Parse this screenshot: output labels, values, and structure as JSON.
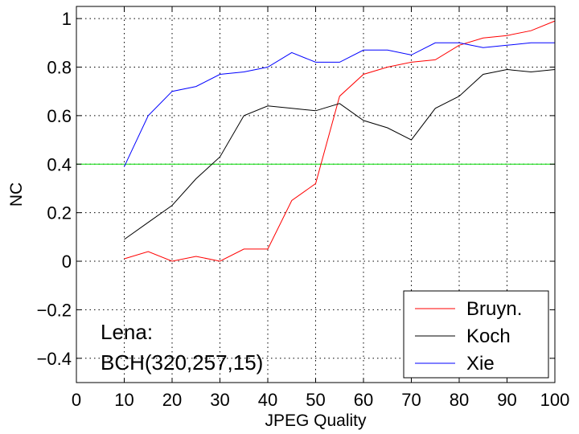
{
  "chart_data": {
    "type": "line",
    "xlabel": "JPEG Quality",
    "ylabel": "NC",
    "xlim": [
      0,
      100
    ],
    "ylim": [
      -0.5,
      1.05
    ],
    "x_ticks": [
      0,
      10,
      20,
      30,
      40,
      50,
      60,
      70,
      80,
      90,
      100
    ],
    "y_ticks": [
      -0.4,
      -0.2,
      0,
      0.2,
      0.4,
      0.6,
      0.8,
      1
    ],
    "y_tick_labels": [
      "−0.4",
      "−0.2",
      "0",
      "0.2",
      "0.4",
      "0.6",
      "0.8",
      "1"
    ],
    "grid": true,
    "legend_placement": "bottom-right",
    "threshold": {
      "value": 0.4,
      "color": "#00dd00"
    },
    "x": [
      10,
      15,
      20,
      25,
      30,
      35,
      40,
      45,
      50,
      55,
      60,
      65,
      70,
      75,
      80,
      85,
      90,
      95,
      100
    ],
    "series": [
      {
        "name": "Bruyn.",
        "color": "#ff0000",
        "values": [
          0.01,
          0.04,
          0.0,
          0.02,
          0.0,
          0.05,
          0.05,
          0.25,
          0.32,
          0.68,
          0.77,
          0.8,
          0.82,
          0.83,
          0.89,
          0.92,
          0.93,
          0.95,
          0.99
        ]
      },
      {
        "name": "Koch",
        "color": "#000000",
        "values": [
          0.09,
          0.16,
          0.23,
          0.34,
          0.43,
          0.6,
          0.64,
          0.63,
          0.62,
          0.65,
          0.58,
          0.55,
          0.5,
          0.63,
          0.68,
          0.77,
          0.79,
          0.78,
          0.79
        ]
      },
      {
        "name": "Xie",
        "color": "#0000ff",
        "values": [
          0.39,
          0.6,
          0.7,
          0.72,
          0.77,
          0.78,
          0.8,
          0.86,
          0.82,
          0.82,
          0.87,
          0.87,
          0.85,
          0.9,
          0.9,
          0.88,
          0.89,
          0.9,
          0.9
        ]
      }
    ],
    "annotation": [
      "Lena:",
      "BCH(320,257,15)"
    ]
  }
}
